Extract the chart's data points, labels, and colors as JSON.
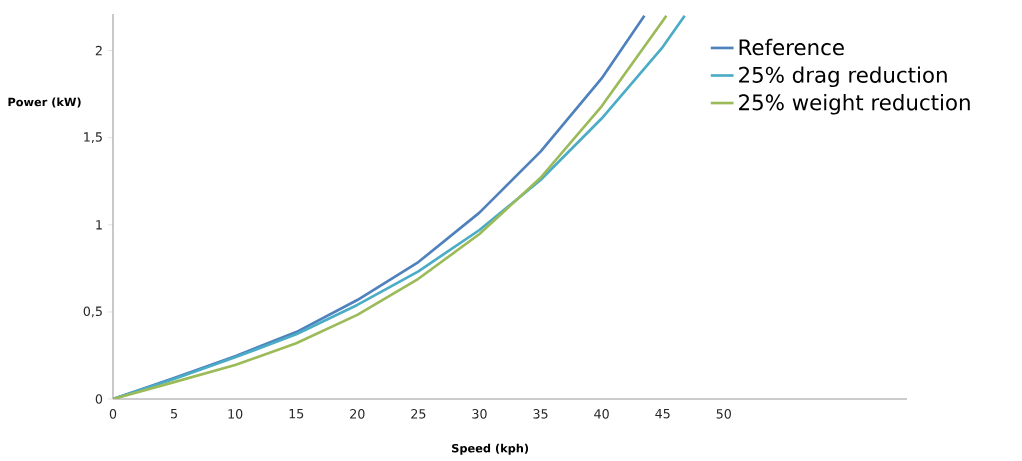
{
  "chart_data": {
    "type": "line",
    "xlabel": "Speed (kph)",
    "ylabel": "Power (kW)",
    "xlim": [
      0,
      65
    ],
    "ylim": [
      0,
      2.21
    ],
    "xticks": [
      0,
      5,
      10,
      15,
      20,
      25,
      30,
      35,
      40,
      45,
      50
    ],
    "yticks": [
      0,
      {
        "value": 0.5,
        "label": "0,5"
      },
      1,
      {
        "value": 1.5,
        "label": "1,5"
      },
      2
    ],
    "grid": false,
    "legend": "top right",
    "marker": "none",
    "line_style": "solid",
    "series": [
      {
        "name": "Reference",
        "color": "#4f81bd",
        "x": [
          0,
          5,
          10,
          15,
          20,
          25,
          30,
          35,
          40,
          43.5
        ],
        "values": [
          0,
          0.12,
          0.246,
          0.384,
          0.568,
          0.786,
          1.07,
          1.42,
          1.84,
          2.2
        ]
      },
      {
        "name": "25% drag reduction",
        "color": "#4bacc6",
        "x": [
          0,
          5,
          10,
          15,
          20,
          25,
          30,
          35,
          40,
          45,
          46.8
        ],
        "values": [
          0,
          0.115,
          0.239,
          0.372,
          0.54,
          0.733,
          0.97,
          1.257,
          1.61,
          2.02,
          2.2
        ]
      },
      {
        "name": "25% weight reduction",
        "color": "#9bbb59",
        "x": [
          0,
          5,
          10,
          15,
          20,
          25,
          30,
          35,
          40,
          45,
          45.3
        ],
        "values": [
          0,
          0.097,
          0.195,
          0.32,
          0.483,
          0.69,
          0.947,
          1.27,
          1.68,
          2.17,
          2.2
        ]
      }
    ]
  }
}
